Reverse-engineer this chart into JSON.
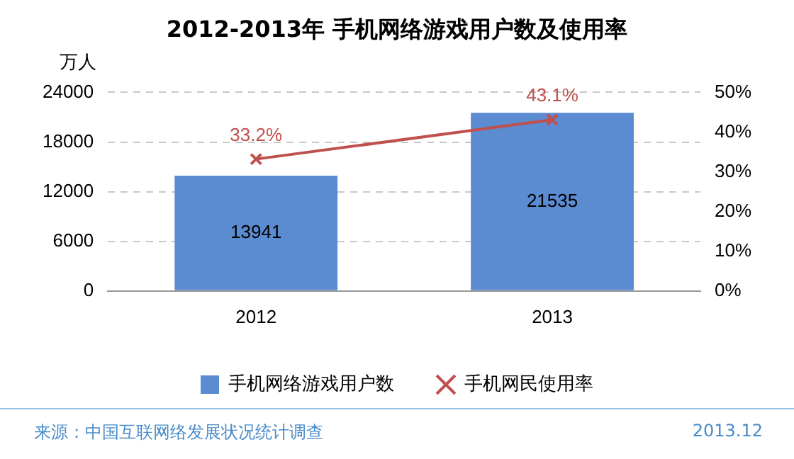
{
  "chart_data": {
    "type": "bar",
    "title": "2012-2013年 手机网络游戏用户数及使用率",
    "ylabel": "万人",
    "categories": [
      "2012",
      "2013"
    ],
    "series": [
      {
        "name": "手机网络游戏用户数",
        "color": "#5b8bd0",
        "values": [
          13941,
          21535
        ],
        "value_labels": [
          "13941",
          "21535"
        ]
      },
      {
        "name": "手机网民使用率",
        "type": "line",
        "axis": "y2",
        "color": "#c0504d",
        "marker": "cross",
        "values": [
          33.2,
          43.1
        ],
        "value_labels": [
          "33.2%",
          "43.1%"
        ]
      }
    ],
    "ylim": [
      0,
      24000
    ],
    "yticks": [
      0,
      6000,
      12000,
      18000,
      24000
    ],
    "y2lim": [
      0,
      50
    ],
    "y2ticks": [
      {
        "value": 0,
        "label": "0%"
      },
      {
        "value": 10,
        "label": "10%"
      },
      {
        "value": 20,
        "label": "20%"
      },
      {
        "value": 30,
        "label": "30%"
      },
      {
        "value": 40,
        "label": "40%"
      },
      {
        "value": 50,
        "label": "50%"
      }
    ],
    "grid": "y",
    "legend": "bottom",
    "annotations": [
      "来源：中国互联网络发展状况统计调查",
      "2013.12"
    ]
  }
}
